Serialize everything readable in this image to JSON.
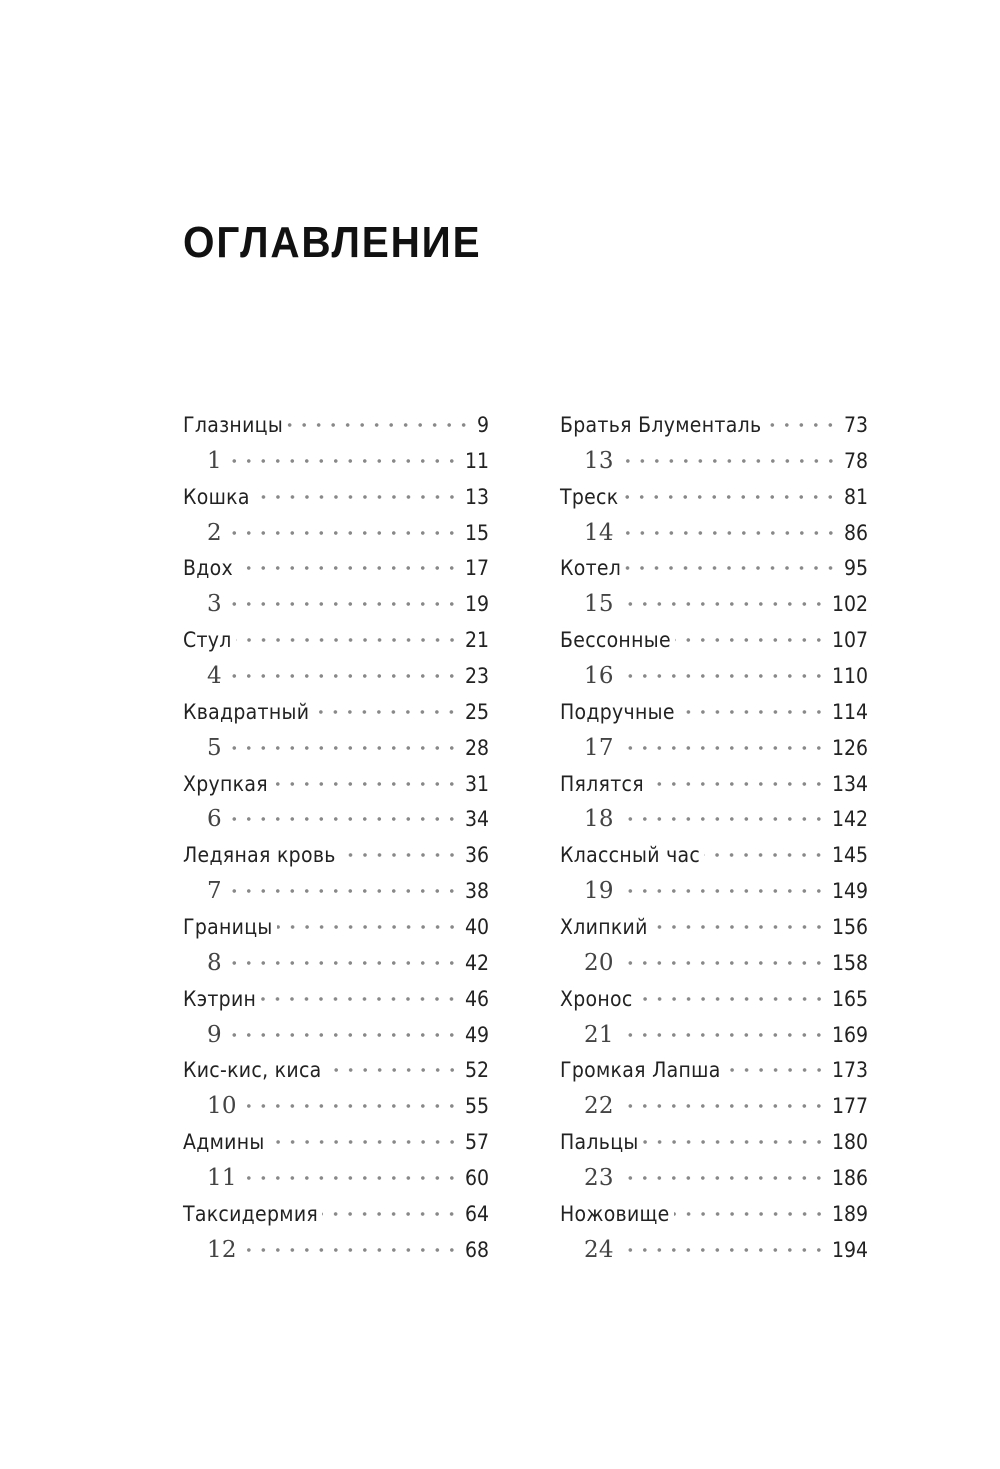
{
  "title": "ОГЛАВЛЕНИЕ",
  "left": [
    {
      "label": "Глазницы",
      "page": "9",
      "type": "chapter"
    },
    {
      "label": "1",
      "page": "11",
      "type": "num"
    },
    {
      "label": "Кошка",
      "page": "13",
      "type": "chapter"
    },
    {
      "label": "2",
      "page": "15",
      "type": "num"
    },
    {
      "label": "Вдох",
      "page": "17",
      "type": "chapter"
    },
    {
      "label": "3",
      "page": "19",
      "type": "num"
    },
    {
      "label": "Стул",
      "page": "21",
      "type": "chapter"
    },
    {
      "label": "4",
      "page": "23",
      "type": "num"
    },
    {
      "label": "Квадратный",
      "page": "25",
      "type": "chapter"
    },
    {
      "label": "5",
      "page": "28",
      "type": "num"
    },
    {
      "label": "Хрупкая",
      "page": "31",
      "type": "chapter"
    },
    {
      "label": "6",
      "page": "34",
      "type": "num"
    },
    {
      "label": "Ледяная кровь",
      "page": "36",
      "type": "chapter"
    },
    {
      "label": "7",
      "page": "38",
      "type": "num"
    },
    {
      "label": "Границы",
      "page": "40",
      "type": "chapter"
    },
    {
      "label": "8",
      "page": "42",
      "type": "num"
    },
    {
      "label": "Кэтрин",
      "page": "46",
      "type": "chapter"
    },
    {
      "label": "9",
      "page": "49",
      "type": "num"
    },
    {
      "label": "Кис-кис, киса",
      "page": "52",
      "type": "chapter"
    },
    {
      "label": "10",
      "page": "55",
      "type": "num"
    },
    {
      "label": "Админы",
      "page": "57",
      "type": "chapter"
    },
    {
      "label": "11",
      "page": "60",
      "type": "num"
    },
    {
      "label": "Таксидермия",
      "page": "64",
      "type": "chapter"
    },
    {
      "label": "12",
      "page": "68",
      "type": "num"
    }
  ],
  "right": [
    {
      "label": "Братья Блументаль",
      "page": "73",
      "type": "chapter"
    },
    {
      "label": "13",
      "page": "78",
      "type": "num"
    },
    {
      "label": "Треск",
      "page": "81",
      "type": "chapter"
    },
    {
      "label": "14",
      "page": "86",
      "type": "num"
    },
    {
      "label": "Котел",
      "page": "95",
      "type": "chapter"
    },
    {
      "label": "15",
      "page": "102",
      "type": "num"
    },
    {
      "label": "Бессонные",
      "page": "107",
      "type": "chapter"
    },
    {
      "label": "16",
      "page": "110",
      "type": "num"
    },
    {
      "label": "Подручные",
      "page": "114",
      "type": "chapter"
    },
    {
      "label": "17",
      "page": "126",
      "type": "num"
    },
    {
      "label": "Пялятся",
      "page": "134",
      "type": "chapter"
    },
    {
      "label": "18",
      "page": "142",
      "type": "num"
    },
    {
      "label": "Классный час",
      "page": "145",
      "type": "chapter"
    },
    {
      "label": "19",
      "page": "149",
      "type": "num"
    },
    {
      "label": "Хлипкий",
      "page": "156",
      "type": "chapter"
    },
    {
      "label": "20",
      "page": "158",
      "type": "num"
    },
    {
      "label": "Хронос",
      "page": "165",
      "type": "chapter"
    },
    {
      "label": "21",
      "page": "169",
      "type": "num"
    },
    {
      "label": "Громкая Лапша",
      "page": "173",
      "type": "chapter"
    },
    {
      "label": "22",
      "page": "177",
      "type": "num"
    },
    {
      "label": "Пальцы",
      "page": "180",
      "type": "chapter"
    },
    {
      "label": "23",
      "page": "186",
      "type": "num"
    },
    {
      "label": "Ножовище",
      "page": "189",
      "type": "chapter"
    },
    {
      "label": "24",
      "page": "194",
      "type": "num"
    }
  ]
}
